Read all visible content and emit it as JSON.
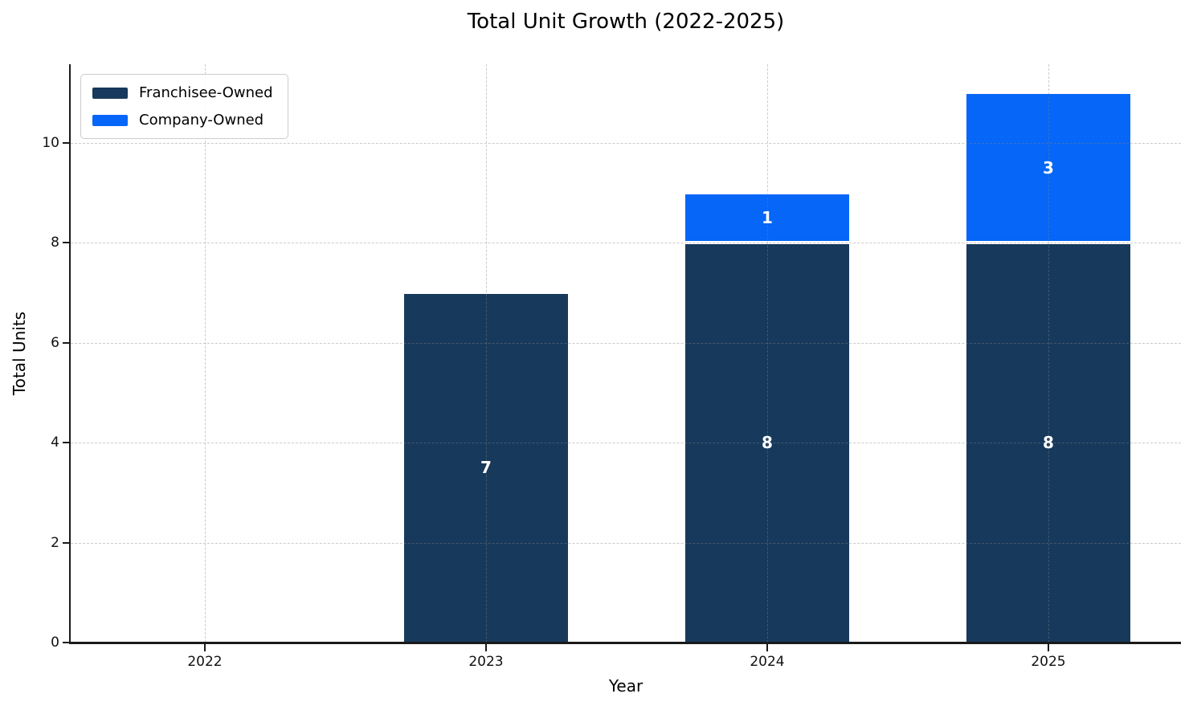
{
  "chart_data": {
    "type": "bar",
    "stacked": true,
    "title": "Total Unit Growth (2022-2025)",
    "xlabel": "Year",
    "ylabel": "Total Units",
    "categories": [
      "2022",
      "2023",
      "2024",
      "2025"
    ],
    "series": [
      {
        "name": "Franchisee-Owned",
        "color": "#17395c",
        "values": [
          0,
          7,
          8,
          8
        ]
      },
      {
        "name": "Company-Owned",
        "color": "#0566f8",
        "values": [
          0,
          0,
          1,
          3
        ]
      }
    ],
    "totals": [
      0,
      7,
      9,
      11
    ],
    "yticks": [
      0,
      2,
      4,
      6,
      8,
      10
    ],
    "ylim": [
      0,
      11.57
    ],
    "bar_value_label_color": "#ffffff",
    "grid": {
      "style": "dashed",
      "axes": "both",
      "color": "#828282",
      "alpha": 0.35,
      "drawn_above_bars": true
    },
    "legend_position": "upper left",
    "spine_color": "#1a1a1a"
  }
}
